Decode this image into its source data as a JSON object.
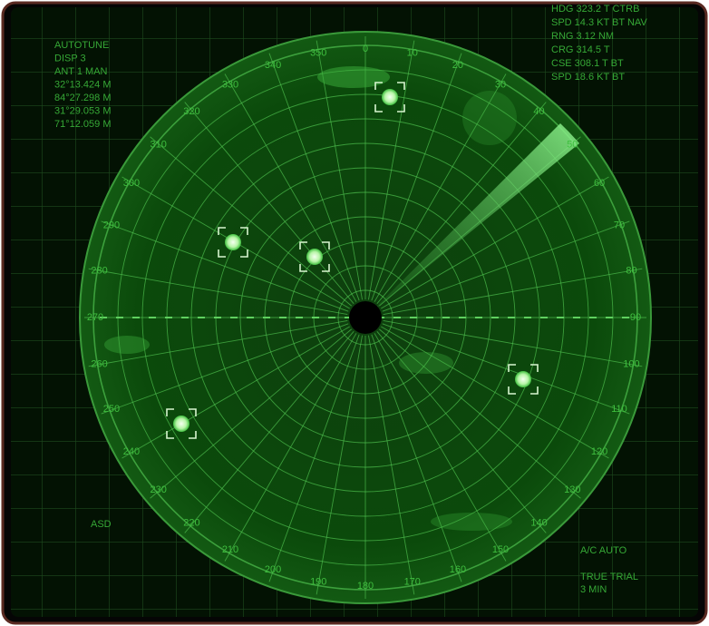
{
  "left_info": [
    "AUTOTUNE",
    "DISP 3",
    "ANT 1 MAN",
    "32°13.424 M",
    "84°27.298 M",
    "31°29.053 M",
    "71°12.059 M"
  ],
  "right_info": [
    "HDG 323.2 T CTRB",
    "SPD 14.3 KT BT NAV",
    "RNG 3.12 NM",
    "CRG 314.5 T",
    "CSE 308.1 T BT",
    "SPD 18.6 KT BT"
  ],
  "bearings": [
    0,
    10,
    20,
    30,
    40,
    50,
    60,
    70,
    80,
    90,
    100,
    110,
    120,
    130,
    140,
    150,
    160,
    170,
    180,
    190,
    200,
    210,
    220,
    230,
    240,
    250,
    260,
    270,
    280,
    290,
    300,
    310,
    320,
    330,
    340,
    350
  ],
  "bottom_left": "ASD",
  "bottom_right": [
    "A/C AUTO",
    "TRUE TRIAL",
    "3 MIN"
  ]
}
